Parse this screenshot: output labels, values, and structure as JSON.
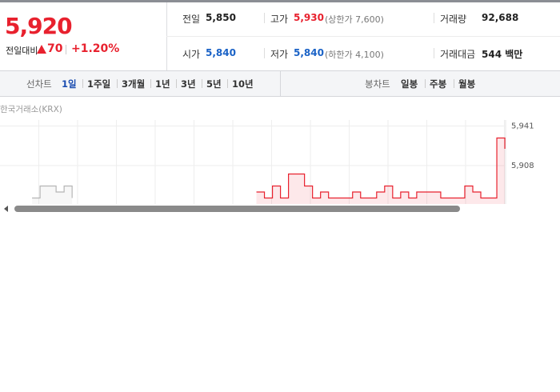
{
  "quote": {
    "price": "5,920",
    "change_label": "전일대비",
    "change": "70",
    "change_rate": "+1.20%"
  },
  "stats": [
    [
      {
        "label": "전일",
        "value": "5,850"
      },
      {
        "label": "고가",
        "value": "5,930",
        "note": "(상한가 7,600)"
      },
      {
        "label": "거래량",
        "value": "92,688"
      }
    ],
    [
      {
        "label": "시가",
        "value": "5,840"
      },
      {
        "label": "저가",
        "value": "5,840",
        "note": "(하한가 4,100)"
      },
      {
        "label": "거래대금",
        "value": "544 백만"
      }
    ]
  ],
  "tabs": {
    "line_label": "선차트",
    "line": [
      "1일",
      "1주일",
      "3개월",
      "1년",
      "3년",
      "5년",
      "10년"
    ],
    "candle_label": "봉차트",
    "candle": [
      "일봉",
      "주봉",
      "월봉"
    ]
  },
  "chart_data": {
    "type": "line",
    "subtitle": "한국거래소(KRX)",
    "ylim": [
      5876,
      5946
    ],
    "yticks": [
      {
        "value": 5941,
        "label": "5,941"
      },
      {
        "value": 5908,
        "label": "5,908"
      }
    ],
    "series": [
      {
        "color": "#b5b5b5",
        "values": [
          null,
          null,
          null,
          null,
          5881,
          5891,
          5891,
          5886,
          5891,
          5881,
          null,
          5886,
          null,
          null,
          null,
          null,
          null,
          null,
          null,
          null,
          null,
          null,
          null,
          null,
          null,
          null,
          null,
          null,
          null,
          null,
          null,
          null,
          null,
          null,
          null,
          null,
          null,
          null,
          null,
          null,
          null,
          null,
          null,
          null,
          null,
          null,
          null,
          null,
          null,
          null,
          null,
          null,
          null,
          null,
          null,
          null,
          null,
          null,
          null,
          null,
          null,
          null,
          null,
          null
        ]
      },
      {
        "color": "#e8212e",
        "values": [
          null,
          null,
          null,
          null,
          null,
          null,
          null,
          null,
          null,
          null,
          null,
          null,
          null,
          null,
          null,
          null,
          null,
          null,
          null,
          null,
          null,
          null,
          null,
          null,
          null,
          null,
          null,
          null,
          null,
          null,
          null,
          null,
          5886,
          5881,
          5891,
          5881,
          5901,
          5901,
          5891,
          5881,
          5886,
          5881,
          5881,
          5881,
          5886,
          5881,
          5881,
          5886,
          5891,
          5881,
          5886,
          5881,
          5886,
          5886,
          5886,
          5881,
          5881,
          5881,
          5891,
          5886,
          5881,
          5881,
          5931,
          5922
        ]
      }
    ]
  }
}
